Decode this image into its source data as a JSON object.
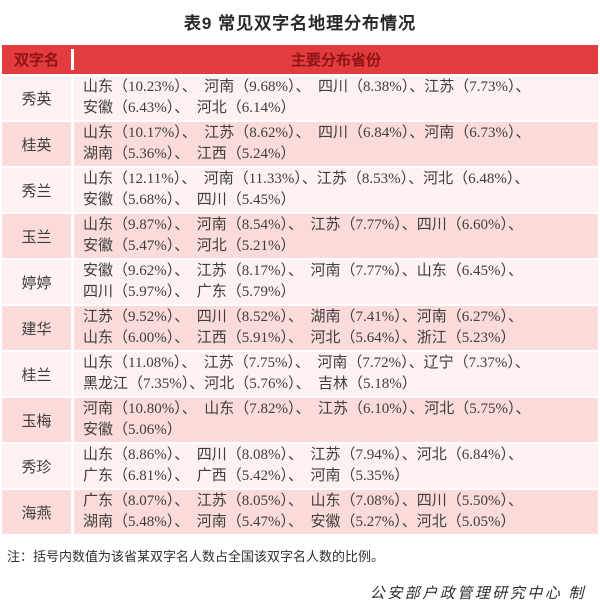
{
  "title": "表9 常见双字名地理分布情况",
  "header": {
    "name_col": "双字名",
    "provinces_col": "主要分布省份"
  },
  "rows": [
    {
      "name": "秀英",
      "lines": [
        "山东（10.23%）、　河南（9.68%）、　四川（8.38%）、江苏（7.73%）、",
        "安徽（6.43%）、　河北（6.14%）"
      ]
    },
    {
      "name": "桂英",
      "lines": [
        "山东（10.17%）、　江苏（8.62%）、　四川（6.84%）、河南（6.73%）、",
        "湖南（5.36%）、　江西（5.24%）"
      ]
    },
    {
      "name": "秀兰",
      "lines": [
        "山东（12.11%）、　河南（11.33%）、江苏（8.53%）、河北（6.48%）、",
        "安徽（5.68%）、　四川（5.45%）"
      ]
    },
    {
      "name": "玉兰",
      "lines": [
        "山东（9.87%）、　河南（8.54%）、　江苏（7.77%）、四川（6.60%）、",
        "安徽（5.47%）、　河北（5.21%）"
      ]
    },
    {
      "name": "婷婷",
      "lines": [
        "安徽（9.62%）、　江苏（8.17%）、　河南（7.77%）、山东（6.45%）、",
        "四川（5.97%）、　广东（5.79%）"
      ]
    },
    {
      "name": "建华",
      "lines": [
        "江苏（9.52%）、　四川（8.52%）、　湖南（7.41%）、河南（6.27%）、",
        "山东（6.00%）、　江西（5.91%）、　河北（5.64%）、浙江（5.23%）"
      ]
    },
    {
      "name": "桂兰",
      "lines": [
        "山东（11.08%）、　江苏（7.75%）、　河南（7.72%）、辽宁（7.37%）、",
        "黑龙江（7.35%）、河北（5.76%）、　吉林（5.18%）"
      ]
    },
    {
      "name": "玉梅",
      "lines": [
        "河南（10.80%）、　山东（7.82%）、　江苏（6.10%）、河北（5.75%）、",
        "安徽（5.06%）"
      ]
    },
    {
      "name": "秀珍",
      "lines": [
        "山东（8.86%）、　四川（8.08%）、　江苏（7.94%）、河北（6.84%）、",
        "广东（6.81%）、　广西（5.42%）、　河南（5.35%）"
      ]
    },
    {
      "name": "海燕",
      "lines": [
        "广东（8.07%）、　江苏（8.05%）、　山东（7.08%）、四川（5.50%）、",
        "湖南（5.48%）、　河南（5.47%）、　安徽（5.27%）、河北（5.05%）"
      ]
    }
  ],
  "note": "注：括号内数值为该省某双字名人数占全国该双字名人数的比例。",
  "credit": "公安部户政管理研究中心 制",
  "colors": {
    "header_bg": "#e23c3e",
    "header_text": "#8c1316",
    "row_light": "#fdf2f1",
    "row_pink": "#fbdbda",
    "body_text": "#3d3d3d"
  }
}
